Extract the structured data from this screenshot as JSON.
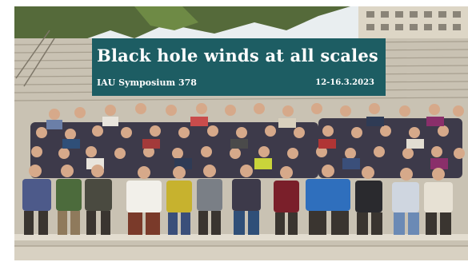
{
  "banner": {
    "title": "Black hole winds at all scales",
    "subtitle": "IAU Symposium 378",
    "date": "12-16.3.2023"
  },
  "colors": {
    "banner_bg": "#1d5d63",
    "banner_text": "#ffffff",
    "steps": "#c9c2b3",
    "sky": "#e9eef0",
    "trees": "#556a3a"
  }
}
